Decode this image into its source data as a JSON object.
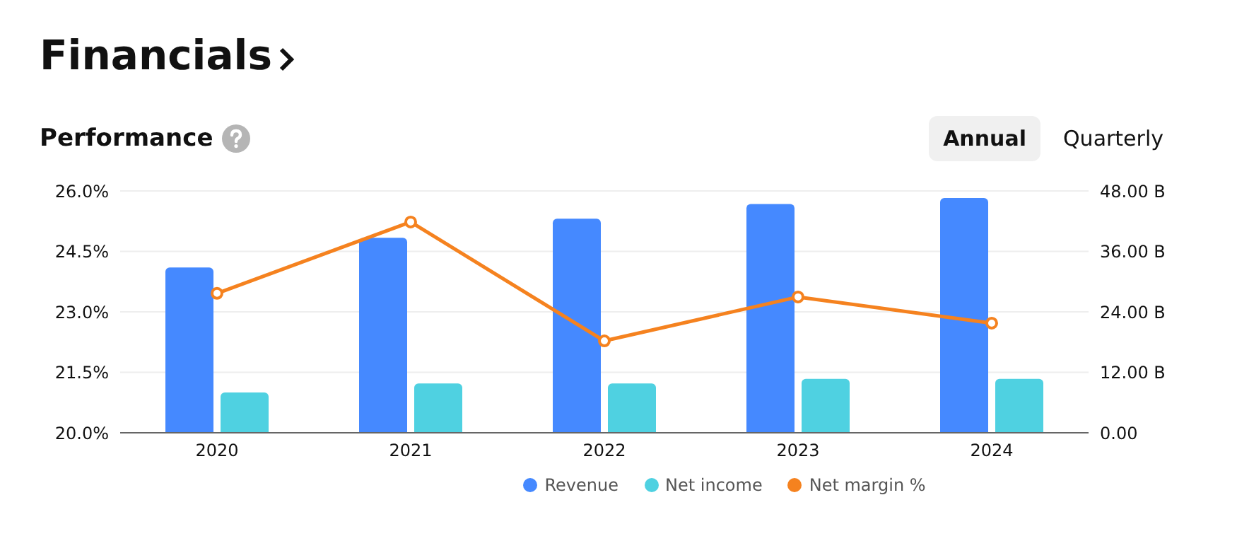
{
  "chart_data": {
    "type": "bar",
    "title": "Financials",
    "subtitle": "Performance",
    "annotations": [
      "Annual",
      "Quarterly"
    ],
    "categories": [
      "2020",
      "2021",
      "2022",
      "2023",
      "2024"
    ],
    "series": [
      {
        "name": "Revenue",
        "axis": "y2",
        "color": "#4589ff",
        "values": [
          32.8,
          38.7,
          42.5,
          45.4,
          46.6
        ]
      },
      {
        "name": "Net income",
        "axis": "y2",
        "color": "#4fd1e1",
        "values": [
          8.0,
          9.8,
          9.8,
          10.7,
          10.7
        ]
      },
      {
        "name": "Net margin %",
        "type": "line",
        "axis": "y",
        "color": "#f5821f",
        "values": [
          23.46,
          25.23,
          22.28,
          23.37,
          22.72
        ]
      }
    ],
    "ylim": [
      20,
      26
    ],
    "yticks": [
      {
        "value": 20,
        "label": "20.0%"
      },
      {
        "value": 21.5,
        "label": "21.5%"
      },
      {
        "value": 23,
        "label": "23.0%"
      },
      {
        "value": 24.5,
        "label": "24.5%"
      },
      {
        "value": 26,
        "label": "26.0%"
      }
    ],
    "y2lim": [
      0,
      48
    ],
    "y2ticks": [
      {
        "value": 0,
        "label": "0.00"
      },
      {
        "value": 12,
        "label": "12.00 B"
      },
      {
        "value": 24,
        "label": "24.00 B"
      },
      {
        "value": 36,
        "label": "36.00 B"
      },
      {
        "value": 48,
        "label": "48.00 B"
      }
    ],
    "grid": "y",
    "legend": "bottom",
    "marker": "circle",
    "line_style": "solid"
  }
}
